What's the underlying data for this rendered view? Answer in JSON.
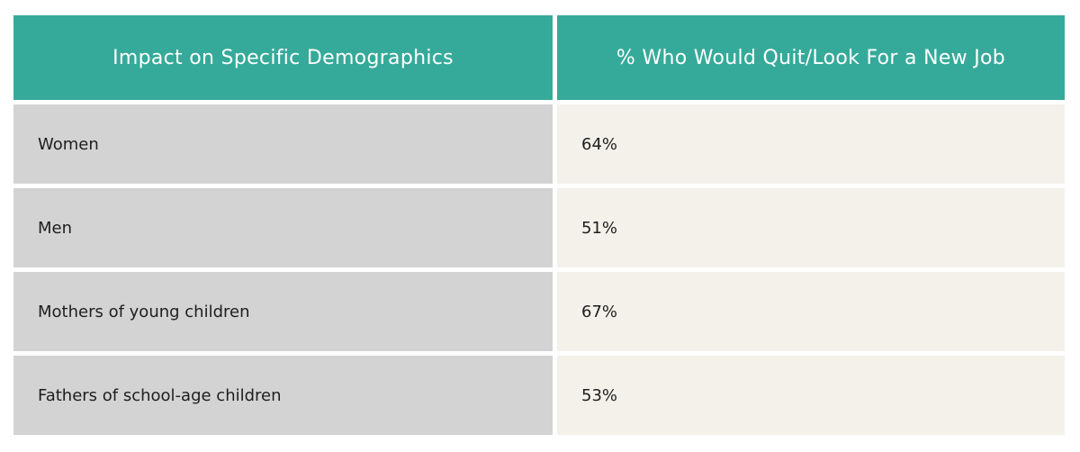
{
  "table": {
    "headers": [
      "Impact on Specific Demographics",
      "% Who Would Quit/Look For a New Job"
    ],
    "rows": [
      [
        "Women",
        "64%"
      ],
      [
        "Men",
        "51%"
      ],
      [
        "Mothers of young children",
        "67%"
      ],
      [
        "Fathers of school-age children",
        "53%"
      ]
    ]
  },
  "colors": {
    "header_bg": "#36aa9a",
    "left_cell_bg": "#d3d3d3",
    "right_cell_bg": "#f3f1ea"
  }
}
